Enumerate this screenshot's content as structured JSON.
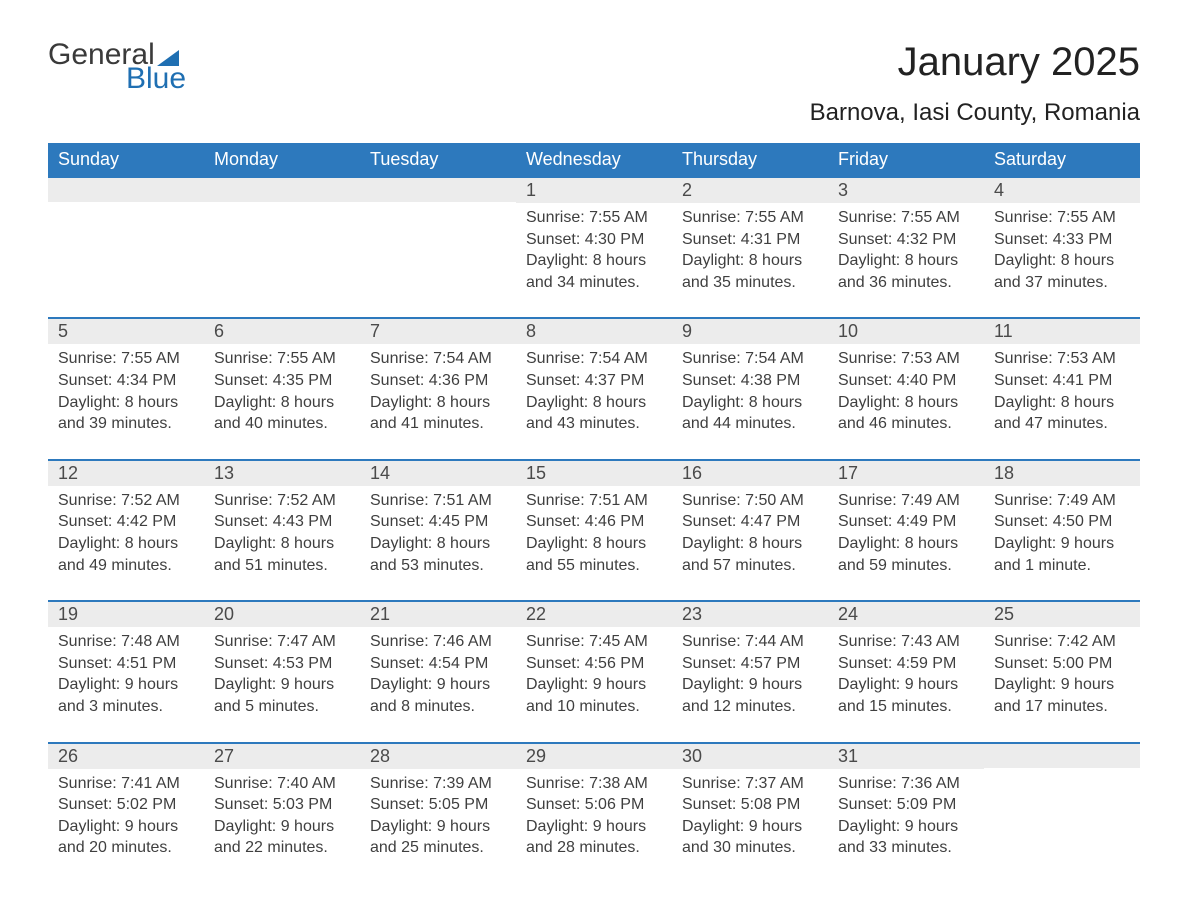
{
  "logo": {
    "text1": "General",
    "text2": "Blue"
  },
  "title": "January 2025",
  "location": "Barnova, Iasi County, Romania",
  "colors": {
    "header_bg": "#2d79bd",
    "header_text": "#ffffff",
    "daynum_bg": "#ececec",
    "row_border": "#2d79bd",
    "logo_accent": "#1f6fb2",
    "body_text": "#3a3a3a",
    "background": "#ffffff"
  },
  "fonts": {
    "title_size_pt": 30,
    "location_size_pt": 18,
    "dayheader_size_pt": 14,
    "body_size_pt": 12
  },
  "day_headers": [
    "Sunday",
    "Monday",
    "Tuesday",
    "Wednesday",
    "Thursday",
    "Friday",
    "Saturday"
  ],
  "weeks": [
    [
      {
        "n": "",
        "sr": "",
        "ss": "",
        "dl": ""
      },
      {
        "n": "",
        "sr": "",
        "ss": "",
        "dl": ""
      },
      {
        "n": "",
        "sr": "",
        "ss": "",
        "dl": ""
      },
      {
        "n": "1",
        "sr": "Sunrise: 7:55 AM",
        "ss": "Sunset: 4:30 PM",
        "dl": "Daylight: 8 hours and 34 minutes."
      },
      {
        "n": "2",
        "sr": "Sunrise: 7:55 AM",
        "ss": "Sunset: 4:31 PM",
        "dl": "Daylight: 8 hours and 35 minutes."
      },
      {
        "n": "3",
        "sr": "Sunrise: 7:55 AM",
        "ss": "Sunset: 4:32 PM",
        "dl": "Daylight: 8 hours and 36 minutes."
      },
      {
        "n": "4",
        "sr": "Sunrise: 7:55 AM",
        "ss": "Sunset: 4:33 PM",
        "dl": "Daylight: 8 hours and 37 minutes."
      }
    ],
    [
      {
        "n": "5",
        "sr": "Sunrise: 7:55 AM",
        "ss": "Sunset: 4:34 PM",
        "dl": "Daylight: 8 hours and 39 minutes."
      },
      {
        "n": "6",
        "sr": "Sunrise: 7:55 AM",
        "ss": "Sunset: 4:35 PM",
        "dl": "Daylight: 8 hours and 40 minutes."
      },
      {
        "n": "7",
        "sr": "Sunrise: 7:54 AM",
        "ss": "Sunset: 4:36 PM",
        "dl": "Daylight: 8 hours and 41 minutes."
      },
      {
        "n": "8",
        "sr": "Sunrise: 7:54 AM",
        "ss": "Sunset: 4:37 PM",
        "dl": "Daylight: 8 hours and 43 minutes."
      },
      {
        "n": "9",
        "sr": "Sunrise: 7:54 AM",
        "ss": "Sunset: 4:38 PM",
        "dl": "Daylight: 8 hours and 44 minutes."
      },
      {
        "n": "10",
        "sr": "Sunrise: 7:53 AM",
        "ss": "Sunset: 4:40 PM",
        "dl": "Daylight: 8 hours and 46 minutes."
      },
      {
        "n": "11",
        "sr": "Sunrise: 7:53 AM",
        "ss": "Sunset: 4:41 PM",
        "dl": "Daylight: 8 hours and 47 minutes."
      }
    ],
    [
      {
        "n": "12",
        "sr": "Sunrise: 7:52 AM",
        "ss": "Sunset: 4:42 PM",
        "dl": "Daylight: 8 hours and 49 minutes."
      },
      {
        "n": "13",
        "sr": "Sunrise: 7:52 AM",
        "ss": "Sunset: 4:43 PM",
        "dl": "Daylight: 8 hours and 51 minutes."
      },
      {
        "n": "14",
        "sr": "Sunrise: 7:51 AM",
        "ss": "Sunset: 4:45 PM",
        "dl": "Daylight: 8 hours and 53 minutes."
      },
      {
        "n": "15",
        "sr": "Sunrise: 7:51 AM",
        "ss": "Sunset: 4:46 PM",
        "dl": "Daylight: 8 hours and 55 minutes."
      },
      {
        "n": "16",
        "sr": "Sunrise: 7:50 AM",
        "ss": "Sunset: 4:47 PM",
        "dl": "Daylight: 8 hours and 57 minutes."
      },
      {
        "n": "17",
        "sr": "Sunrise: 7:49 AM",
        "ss": "Sunset: 4:49 PM",
        "dl": "Daylight: 8 hours and 59 minutes."
      },
      {
        "n": "18",
        "sr": "Sunrise: 7:49 AM",
        "ss": "Sunset: 4:50 PM",
        "dl": "Daylight: 9 hours and 1 minute."
      }
    ],
    [
      {
        "n": "19",
        "sr": "Sunrise: 7:48 AM",
        "ss": "Sunset: 4:51 PM",
        "dl": "Daylight: 9 hours and 3 minutes."
      },
      {
        "n": "20",
        "sr": "Sunrise: 7:47 AM",
        "ss": "Sunset: 4:53 PM",
        "dl": "Daylight: 9 hours and 5 minutes."
      },
      {
        "n": "21",
        "sr": "Sunrise: 7:46 AM",
        "ss": "Sunset: 4:54 PM",
        "dl": "Daylight: 9 hours and 8 minutes."
      },
      {
        "n": "22",
        "sr": "Sunrise: 7:45 AM",
        "ss": "Sunset: 4:56 PM",
        "dl": "Daylight: 9 hours and 10 minutes."
      },
      {
        "n": "23",
        "sr": "Sunrise: 7:44 AM",
        "ss": "Sunset: 4:57 PM",
        "dl": "Daylight: 9 hours and 12 minutes."
      },
      {
        "n": "24",
        "sr": "Sunrise: 7:43 AM",
        "ss": "Sunset: 4:59 PM",
        "dl": "Daylight: 9 hours and 15 minutes."
      },
      {
        "n": "25",
        "sr": "Sunrise: 7:42 AM",
        "ss": "Sunset: 5:00 PM",
        "dl": "Daylight: 9 hours and 17 minutes."
      }
    ],
    [
      {
        "n": "26",
        "sr": "Sunrise: 7:41 AM",
        "ss": "Sunset: 5:02 PM",
        "dl": "Daylight: 9 hours and 20 minutes."
      },
      {
        "n": "27",
        "sr": "Sunrise: 7:40 AM",
        "ss": "Sunset: 5:03 PM",
        "dl": "Daylight: 9 hours and 22 minutes."
      },
      {
        "n": "28",
        "sr": "Sunrise: 7:39 AM",
        "ss": "Sunset: 5:05 PM",
        "dl": "Daylight: 9 hours and 25 minutes."
      },
      {
        "n": "29",
        "sr": "Sunrise: 7:38 AM",
        "ss": "Sunset: 5:06 PM",
        "dl": "Daylight: 9 hours and 28 minutes."
      },
      {
        "n": "30",
        "sr": "Sunrise: 7:37 AM",
        "ss": "Sunset: 5:08 PM",
        "dl": "Daylight: 9 hours and 30 minutes."
      },
      {
        "n": "31",
        "sr": "Sunrise: 7:36 AM",
        "ss": "Sunset: 5:09 PM",
        "dl": "Daylight: 9 hours and 33 minutes."
      },
      {
        "n": "",
        "sr": "",
        "ss": "",
        "dl": ""
      }
    ]
  ]
}
